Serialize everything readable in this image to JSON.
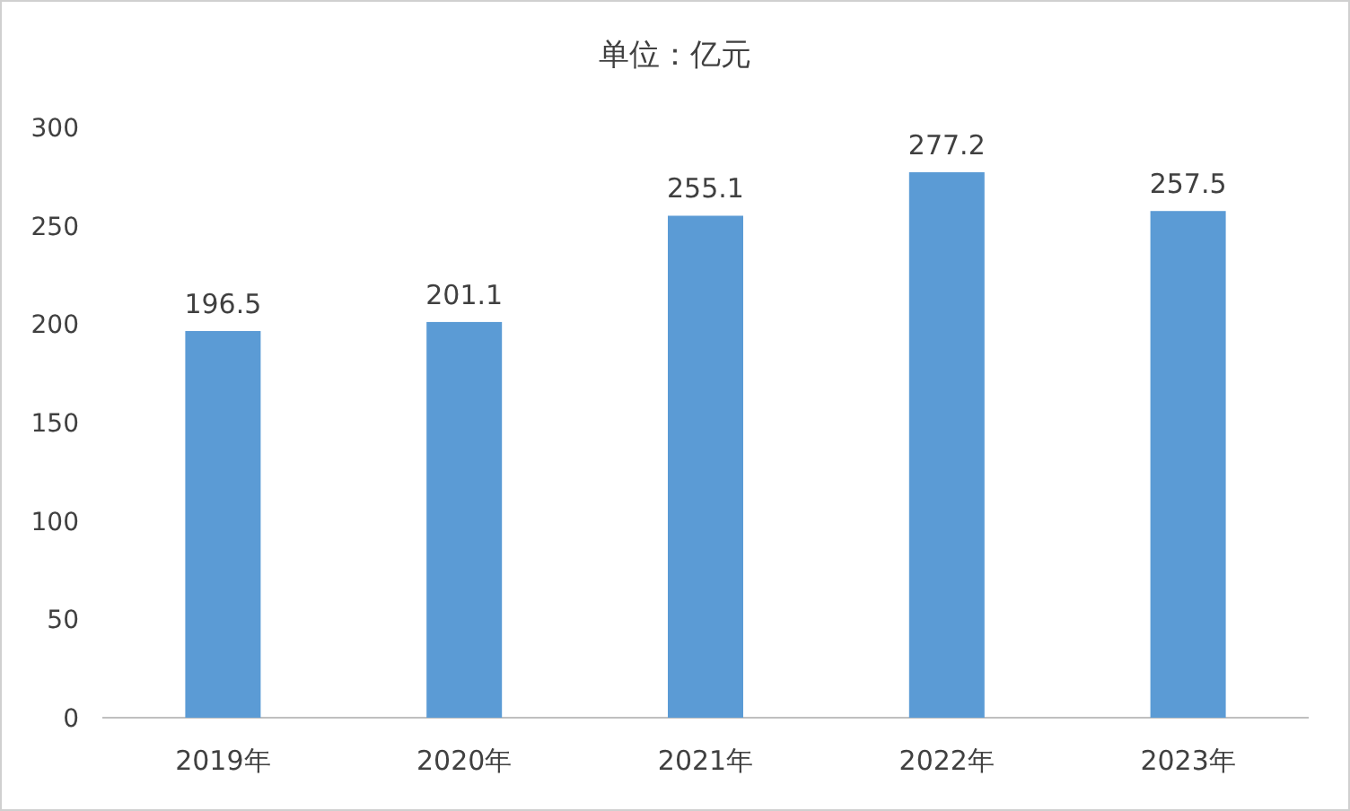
{
  "chart_data": {
    "type": "bar",
    "title": "单位：亿元",
    "categories": [
      "2019年",
      "2020年",
      "2021年",
      "2022年",
      "2023年"
    ],
    "values": [
      196.5,
      201.1,
      255.1,
      277.2,
      257.5
    ],
    "color": "#5b9bd5",
    "ylim": [
      0,
      300
    ],
    "yticks": [
      0,
      50,
      100,
      150,
      200,
      250,
      300
    ],
    "data_labels": true
  }
}
